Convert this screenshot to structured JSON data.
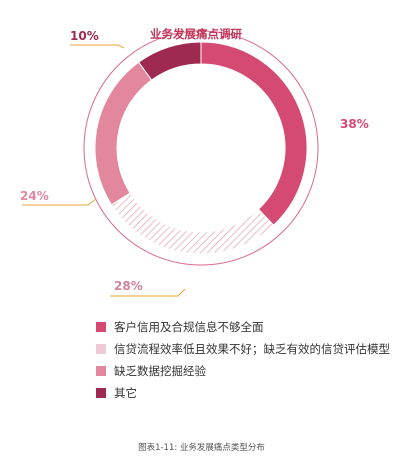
{
  "chart_data": {
    "type": "pie",
    "title": "业务发展痛点调研",
    "caption": "图表1-11: 业务发展痛点类型分布",
    "slices": [
      {
        "name": "客户信用及合规信息不够全面",
        "value": 38,
        "label": "38%",
        "color": "#d44a72",
        "fill": "solid"
      },
      {
        "name": "信贷流程效率低且效果不好；缺乏有效的信贷评估模型",
        "value": 28,
        "label": "28%",
        "color": "#f0c9d6",
        "fill": "hatched"
      },
      {
        "name": "缺乏数据挖掘经验",
        "value": 24,
        "label": "24%",
        "color": "#e3879f",
        "fill": "solid"
      },
      {
        "name": "其它",
        "value": 10,
        "label": "10%",
        "color": "#9e2a52",
        "fill": "solid"
      }
    ]
  },
  "style": {
    "outer_ring_color": "#d96a8c",
    "leader_line_color": "#e8a43a",
    "hatch_color": "#e8aabd"
  }
}
